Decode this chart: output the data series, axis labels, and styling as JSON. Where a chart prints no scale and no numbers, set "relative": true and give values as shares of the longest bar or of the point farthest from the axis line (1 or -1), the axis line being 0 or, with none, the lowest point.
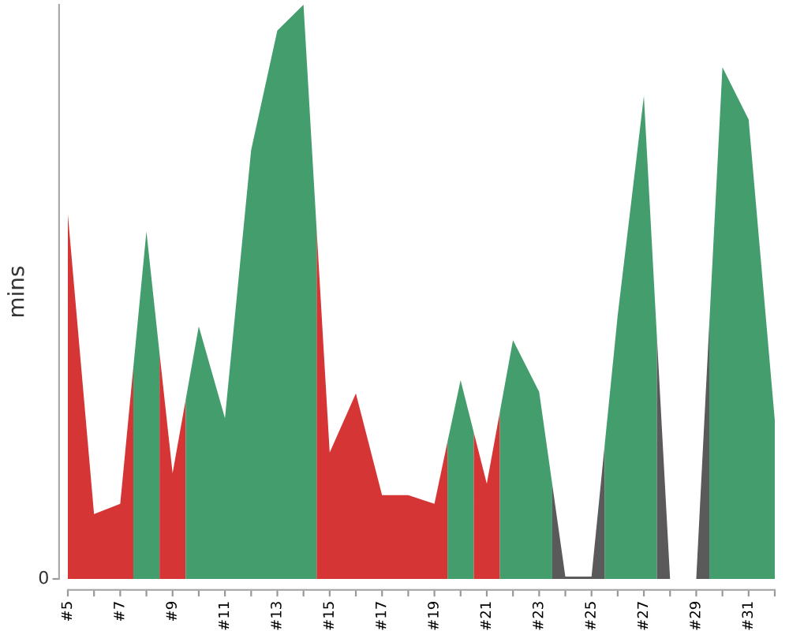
{
  "chart_data": {
    "type": "area",
    "ylabel": "mins",
    "relative": true,
    "annotations": [
      "0"
    ],
    "xlim": [
      5,
      32
    ],
    "xticks": [
      {
        "value": 5,
        "label": "#5"
      },
      {
        "value": 6,
        "label": null
      },
      {
        "value": 7,
        "label": "#7"
      },
      {
        "value": 8,
        "label": null
      },
      {
        "value": 9,
        "label": "#9"
      },
      {
        "value": 10,
        "label": null
      },
      {
        "value": 11,
        "label": "#11"
      },
      {
        "value": 12,
        "label": null
      },
      {
        "value": 13,
        "label": "#13"
      },
      {
        "value": 14,
        "label": null
      },
      {
        "value": 15,
        "label": "#15"
      },
      {
        "value": 16,
        "label": null
      },
      {
        "value": 17,
        "label": "#17"
      },
      {
        "value": 18,
        "label": null
      },
      {
        "value": 19,
        "label": "#19"
      },
      {
        "value": 20,
        "label": null
      },
      {
        "value": 21,
        "label": "#21"
      },
      {
        "value": 22,
        "label": null
      },
      {
        "value": 23,
        "label": "#23"
      },
      {
        "value": 24,
        "label": null
      },
      {
        "value": 25,
        "label": "#25"
      },
      {
        "value": 26,
        "label": null
      },
      {
        "value": 27,
        "label": "#27"
      },
      {
        "value": 28,
        "label": null
      },
      {
        "value": 29,
        "label": "#29"
      },
      {
        "value": 30,
        "label": null
      },
      {
        "value": 31,
        "label": "#31"
      },
      {
        "value": 32,
        "label": null
      }
    ],
    "series": [
      {
        "color": "#d63535",
        "x": [
          5,
          6,
          7,
          7.5,
          8,
          8.5,
          9,
          9.5,
          12,
          14.5,
          15,
          16,
          17,
          18,
          19,
          19.5,
          20,
          20.5,
          21,
          21.5
        ],
        "values": [
          0.635,
          0.113,
          0.131,
          0.368,
          null,
          0.394,
          0.184,
          0.312,
          null,
          0.61,
          0.22,
          0.323,
          0.146,
          0.146,
          0.131,
          0.239,
          null,
          0.256,
          0.166,
          0.291
        ]
      },
      {
        "color": "#449d6c",
        "x": [
          7.5,
          8,
          8.5,
          9,
          9.5,
          10,
          11,
          12,
          13,
          14,
          14.5,
          17,
          19.5,
          20,
          20.5,
          21,
          21.5,
          22,
          23,
          23.5,
          24,
          25.5,
          26,
          27,
          27.5,
          28,
          29.5,
          30,
          31,
          32
        ],
        "values": [
          0.368,
          0.605,
          0.394,
          null,
          0.312,
          0.44,
          0.28,
          0.747,
          0.955,
          1,
          0.61,
          null,
          0.239,
          0.346,
          0.256,
          null,
          0.291,
          0.416,
          0.326,
          0.165,
          null,
          0.232,
          0.459,
          0.841,
          0.42,
          null,
          0.446,
          0.891,
          0.8,
          0.276
        ]
      },
      {
        "color": "#5a5a5a",
        "x": [
          23.5,
          24,
          25,
          25.5,
          26.5,
          27.5,
          28,
          29,
          29.5
        ],
        "values": [
          0.165,
          0.004,
          0.004,
          0.232,
          null,
          0.42,
          0,
          0,
          0.446
        ]
      }
    ]
  }
}
